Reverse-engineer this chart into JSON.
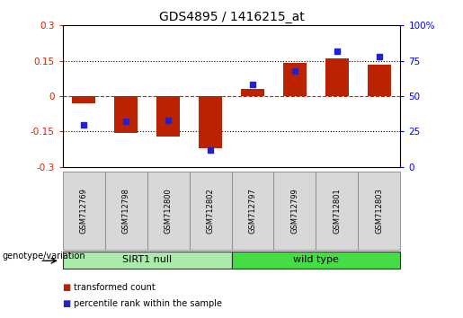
{
  "title": "GDS4895 / 1416215_at",
  "samples": [
    "GSM712769",
    "GSM712798",
    "GSM712800",
    "GSM712802",
    "GSM712797",
    "GSM712799",
    "GSM712801",
    "GSM712803"
  ],
  "groups": [
    {
      "label": "SIRT1 null",
      "count": 4,
      "color": "#aaeaaa"
    },
    {
      "label": "wild type",
      "count": 4,
      "color": "#44dd44"
    }
  ],
  "bar_values": [
    -0.03,
    -0.155,
    -0.17,
    -0.22,
    0.03,
    0.14,
    0.16,
    0.135
  ],
  "scatter_values_pct": [
    30,
    32,
    33,
    12,
    58,
    68,
    82,
    78
  ],
  "ylim_left": [
    -0.3,
    0.3
  ],
  "ylim_right": [
    0,
    100
  ],
  "bar_color": "#bb2200",
  "scatter_color": "#2222cc",
  "right_ticks": [
    0,
    25,
    50,
    75,
    100
  ],
  "right_tick_labels": [
    "0",
    "25",
    "50",
    "75",
    "100%"
  ],
  "legend": [
    "transformed count",
    "percentile rank within the sample"
  ],
  "bar_width": 0.55,
  "scatter_size": 20
}
